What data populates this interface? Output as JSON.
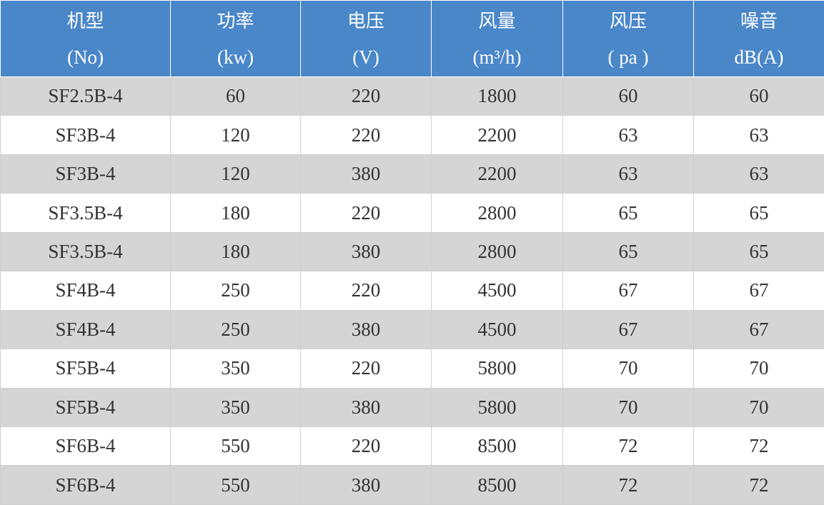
{
  "table": {
    "header": [
      [
        "机型",
        "功率",
        "电压",
        "风量",
        "风压",
        "噪音"
      ],
      [
        "(No)",
        "(kw)",
        "(V)",
        "(m³/h)",
        "( pa )",
        "dB(A)"
      ]
    ],
    "rows": [
      [
        "SF2.5B-4",
        60,
        220,
        1800,
        60,
        60
      ],
      [
        "SF3B-4",
        120,
        220,
        2200,
        63,
        63
      ],
      [
        "SF3B-4",
        120,
        380,
        2200,
        63,
        63
      ],
      [
        "SF3.5B-4",
        180,
        220,
        2800,
        65,
        65
      ],
      [
        "SF3.5B-4",
        180,
        380,
        2800,
        65,
        65
      ],
      [
        "SF4B-4",
        250,
        220,
        4500,
        67,
        67
      ],
      [
        "SF4B-4",
        250,
        380,
        4500,
        67,
        67
      ],
      [
        "SF5B-4",
        350,
        220,
        5800,
        70,
        70
      ],
      [
        "SF5B-4",
        350,
        380,
        5800,
        70,
        70
      ],
      [
        "SF6B-4",
        550,
        220,
        8500,
        72,
        72
      ],
      [
        "SF6B-4",
        550,
        380,
        8500,
        72,
        72
      ]
    ]
  }
}
